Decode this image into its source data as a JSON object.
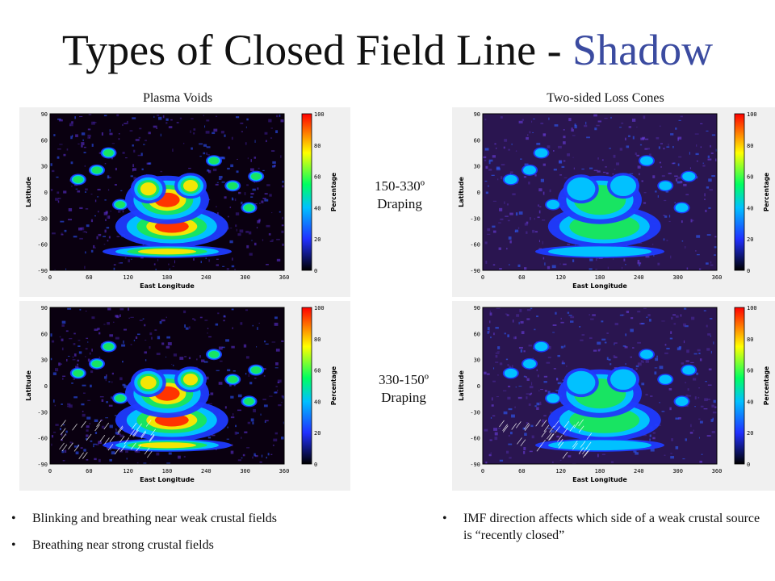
{
  "title": {
    "main": "Types of Closed Field Line - ",
    "accent": "Shadow"
  },
  "columns": {
    "left": "Plasma Voids",
    "right": "Two-sided Loss Cones"
  },
  "middle_labels": [
    {
      "line1": "150-330º",
      "line2": "Draping"
    },
    {
      "line1": "330-150º",
      "line2": "Draping"
    }
  ],
  "plot_axes": {
    "xlabel": "East Longitude",
    "ylabel": "Latitude",
    "colorbar_label": "Percentage",
    "x_ticks": [
      "0",
      "60",
      "120",
      "180",
      "240",
      "300",
      "360"
    ],
    "y_ticks": [
      "90",
      "60",
      "30",
      "0",
      "-30",
      "-60",
      "-90"
    ],
    "colorbar_ticks": [
      "100",
      "80",
      "60",
      "40",
      "20",
      "0"
    ]
  },
  "bullets_left": [
    "Blinking and breathing near weak crustal fields",
    "Breathing near strong crustal fields"
  ],
  "bullets_right": [
    "IMF direction affects which side of a weak crustal source is “recently closed”"
  ],
  "colors": {
    "accent": "#3b4ba0"
  }
}
